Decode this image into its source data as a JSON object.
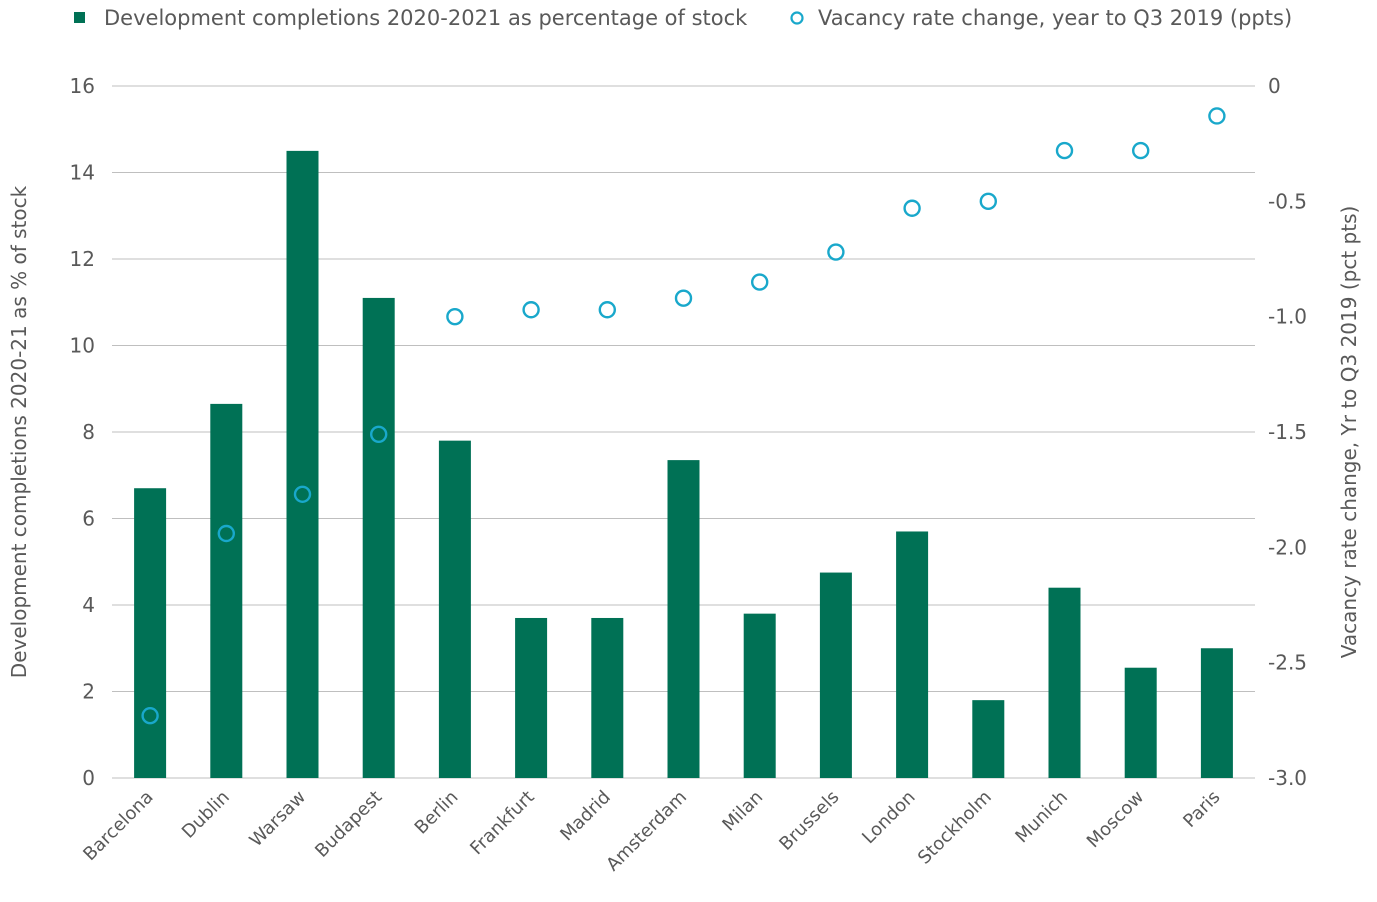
{
  "chart_data": {
    "type": "bar",
    "categories": [
      "Barcelona",
      "Dublin",
      "Warsaw",
      "Budapest",
      "Berlin",
      "Frankfurt",
      "Madrid",
      "Amsterdam",
      "Milan",
      "Brussels",
      "London",
      "Stockholm",
      "Munich",
      "Moscow",
      "Paris"
    ],
    "series": [
      {
        "name": "Development completions 2020-2021 as percentage of stock",
        "type": "bar",
        "axis": "left",
        "color": "#007155",
        "values": [
          6.7,
          8.65,
          14.5,
          11.1,
          7.8,
          3.7,
          3.7,
          7.35,
          3.8,
          4.75,
          5.7,
          1.8,
          4.4,
          2.55,
          3.0
        ]
      },
      {
        "name": "Vacancy rate change, year to Q3 2019 (ppts)",
        "type": "scatter",
        "axis": "right",
        "color": "#19a8cb",
        "marker": "hollow-circle",
        "values": [
          -2.73,
          -1.94,
          -1.77,
          -1.51,
          -1.0,
          -0.97,
          -0.97,
          -0.92,
          -0.85,
          -0.72,
          -0.53,
          -0.5,
          -0.28,
          -0.28,
          -0.13
        ]
      }
    ],
    "ylabel": "Development completions 2020-21 as % of stock",
    "ylim": [
      0,
      16
    ],
    "yticks": [
      "0",
      "2",
      "4",
      "6",
      "8",
      "10",
      "12",
      "14",
      "16"
    ],
    "y2label": "Vacancy rate change, Yr  to Q3 2019 (pct pts)",
    "y2lim": [
      -3.0,
      0
    ],
    "y2ticks": [
      "0",
      "-0.5",
      "-1.0",
      "-1.5",
      "-2.0",
      "-2.5",
      "-3.0"
    ],
    "grid": true,
    "legend_position": "top"
  }
}
